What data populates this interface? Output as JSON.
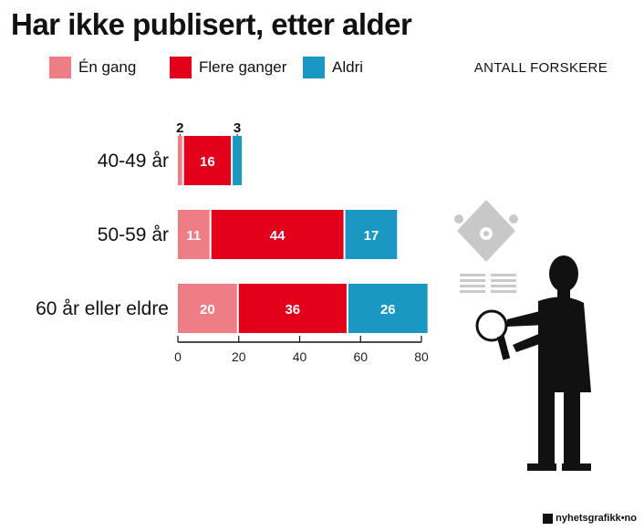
{
  "chart_data": {
    "type": "bar",
    "orientation": "horizontal",
    "stacked": true,
    "title": "Har ikke publisert, etter alder",
    "unit_label": "ANTALL FORSKERE",
    "categories": [
      "40-49 år",
      "50-59 år",
      "60 år eller eldre"
    ],
    "series": [
      {
        "name": "Én gang",
        "values": [
          2,
          11,
          20
        ],
        "color": "#ef7d86"
      },
      {
        "name": "Flere ganger",
        "values": [
          16,
          44,
          36
        ],
        "color": "#e3001b"
      },
      {
        "name": "Aldri",
        "values": [
          3,
          17,
          26
        ],
        "color": "#1b98c2"
      }
    ],
    "value_labels": [
      [
        "2",
        "16",
        "3"
      ],
      [
        "11",
        "44",
        "17"
      ],
      [
        "20",
        "36",
        "26"
      ]
    ],
    "xlim": [
      0,
      80
    ],
    "xticks": [
      0,
      20,
      40,
      60,
      80
    ],
    "grid": false,
    "legend_position": "top"
  },
  "footer": {
    "brand": "nyhetsgrafikk",
    "brand_suffix": "no"
  },
  "illustration": {
    "icon": "researcher-with-magnifying-glass-icon"
  }
}
